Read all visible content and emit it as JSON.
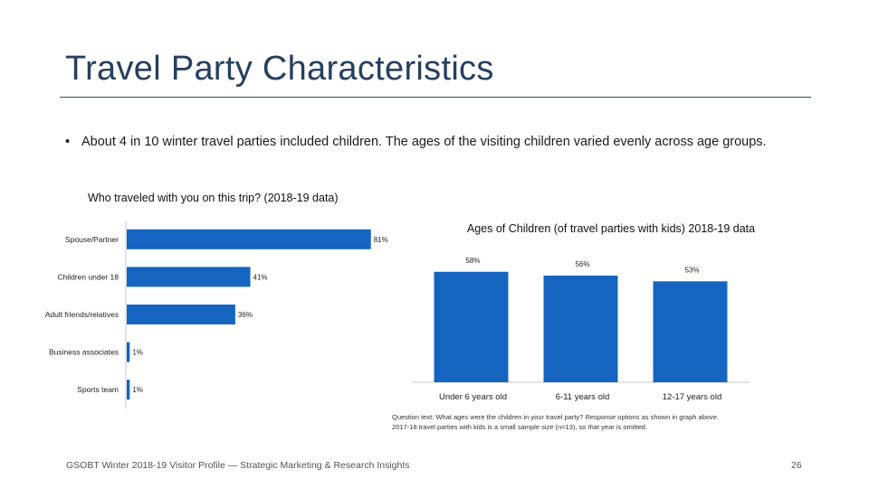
{
  "slide": {
    "title": "Travel Party Characteristics",
    "bullet_marker": "•",
    "bullet": "About 4 in 10 winter travel parties included children. The ages of the visiting children varied evenly across age groups.",
    "footnote_line1": "Question text: What ages were the children in your travel party? Response options as shown in graph above.",
    "footnote_line2": "2017-18 travel parties with kids is a small sample size (n=13), so that year is omitted.",
    "footer": "GSOBT Winter 2018-19 Visitor Profile — Strategic Marketing & Research Insights",
    "page_number": "26"
  },
  "colors": {
    "bar": "#1565c0",
    "title": "#263f5e",
    "rule": "#2e5174"
  },
  "chart_data": [
    {
      "type": "bar",
      "orientation": "horizontal",
      "title": "Who traveled with you on this trip? (2018-19 data)",
      "categories": [
        "Spouse/Partner",
        "Children under 18",
        "Adult friends/relatives",
        "Business associates",
        "Sports team"
      ],
      "values": [
        81,
        41,
        36,
        1,
        1
      ],
      "value_labels": [
        "81%",
        "41%",
        "36%",
        "1%",
        "1%"
      ],
      "xlim": [
        0,
        100
      ],
      "xlabel": "",
      "ylabel": ""
    },
    {
      "type": "bar",
      "orientation": "vertical",
      "title": "Ages of Children (of travel parties with kids) 2018-19 data",
      "categories": [
        "Under 6 years old",
        "6-11 years old",
        "12-17 years old"
      ],
      "values": [
        58,
        56,
        53
      ],
      "value_labels": [
        "58%",
        "56%",
        "53%"
      ],
      "ylim": [
        0,
        65
      ],
      "xlabel": "",
      "ylabel": ""
    }
  ]
}
